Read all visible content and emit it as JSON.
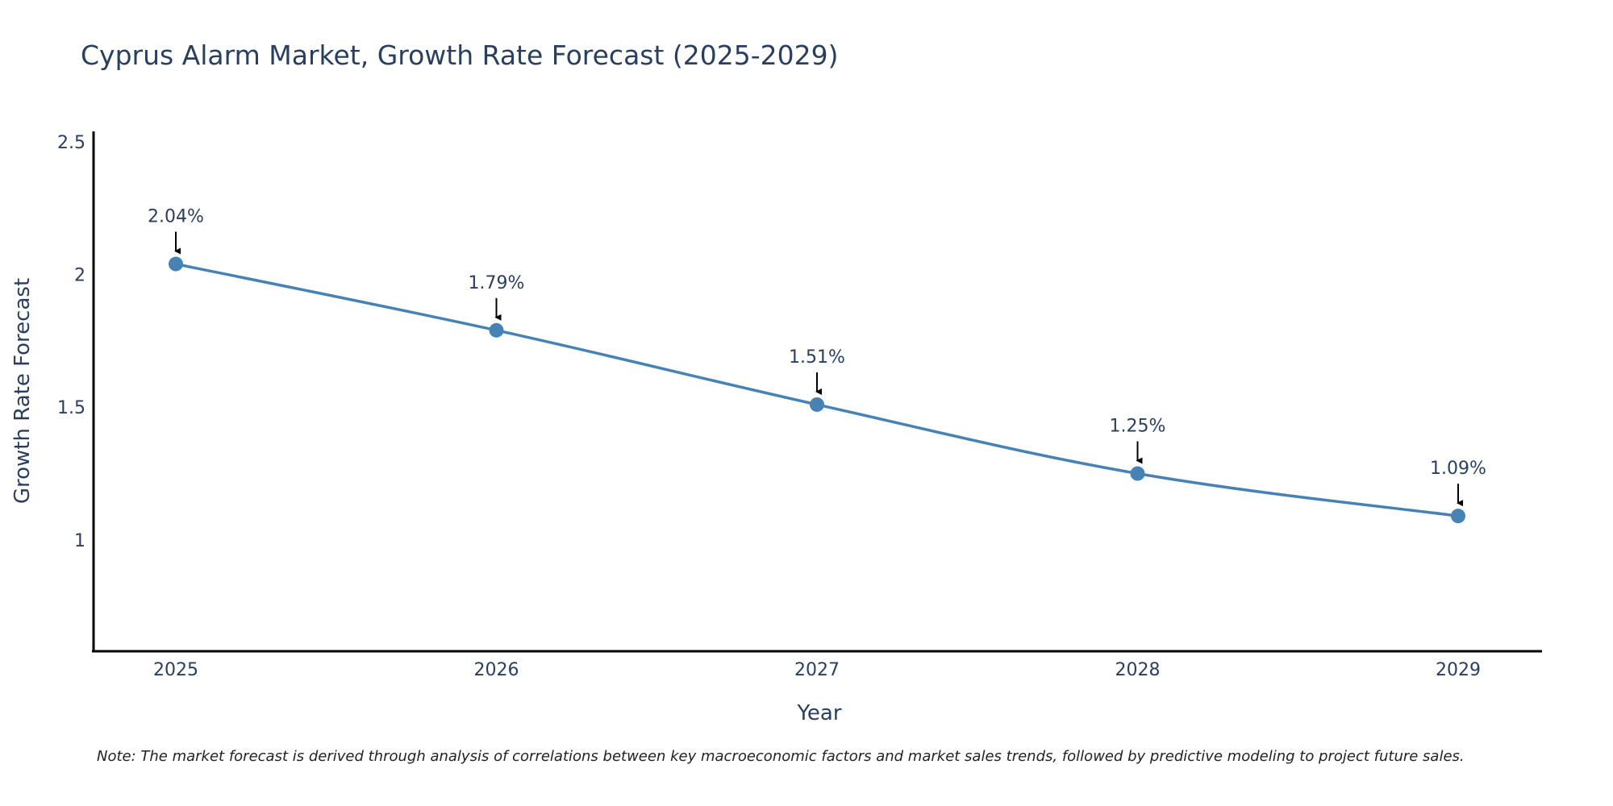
{
  "chart_data": {
    "type": "line",
    "title": "Cyprus Alarm Market, Growth Rate Forecast (2025-2029)",
    "xlabel": "Year",
    "ylabel": "Growth Rate Forecast",
    "categories": [
      "2025",
      "2026",
      "2027",
      "2028",
      "2029"
    ],
    "series": [
      {
        "name": "Growth Rate Forecast",
        "values": [
          2.04,
          1.79,
          1.51,
          1.25,
          1.09
        ],
        "labels": [
          "2.04%",
          "1.79%",
          "1.51%",
          "1.25%",
          "1.09%"
        ]
      }
    ],
    "ylim": [
      0.58,
      2.54
    ],
    "yticks": [
      1,
      1.5,
      2,
      2.5
    ],
    "ytick_labels": [
      "1",
      "1.5",
      "2",
      "2.5"
    ],
    "grid": false,
    "line_color": "#4682b4",
    "annotation_arrow_color": "#000000",
    "note": "Note: The market forecast is derived through analysis of correlations between key macroeconomic factors and market sales trends, followed by predictive modeling to project future sales."
  }
}
